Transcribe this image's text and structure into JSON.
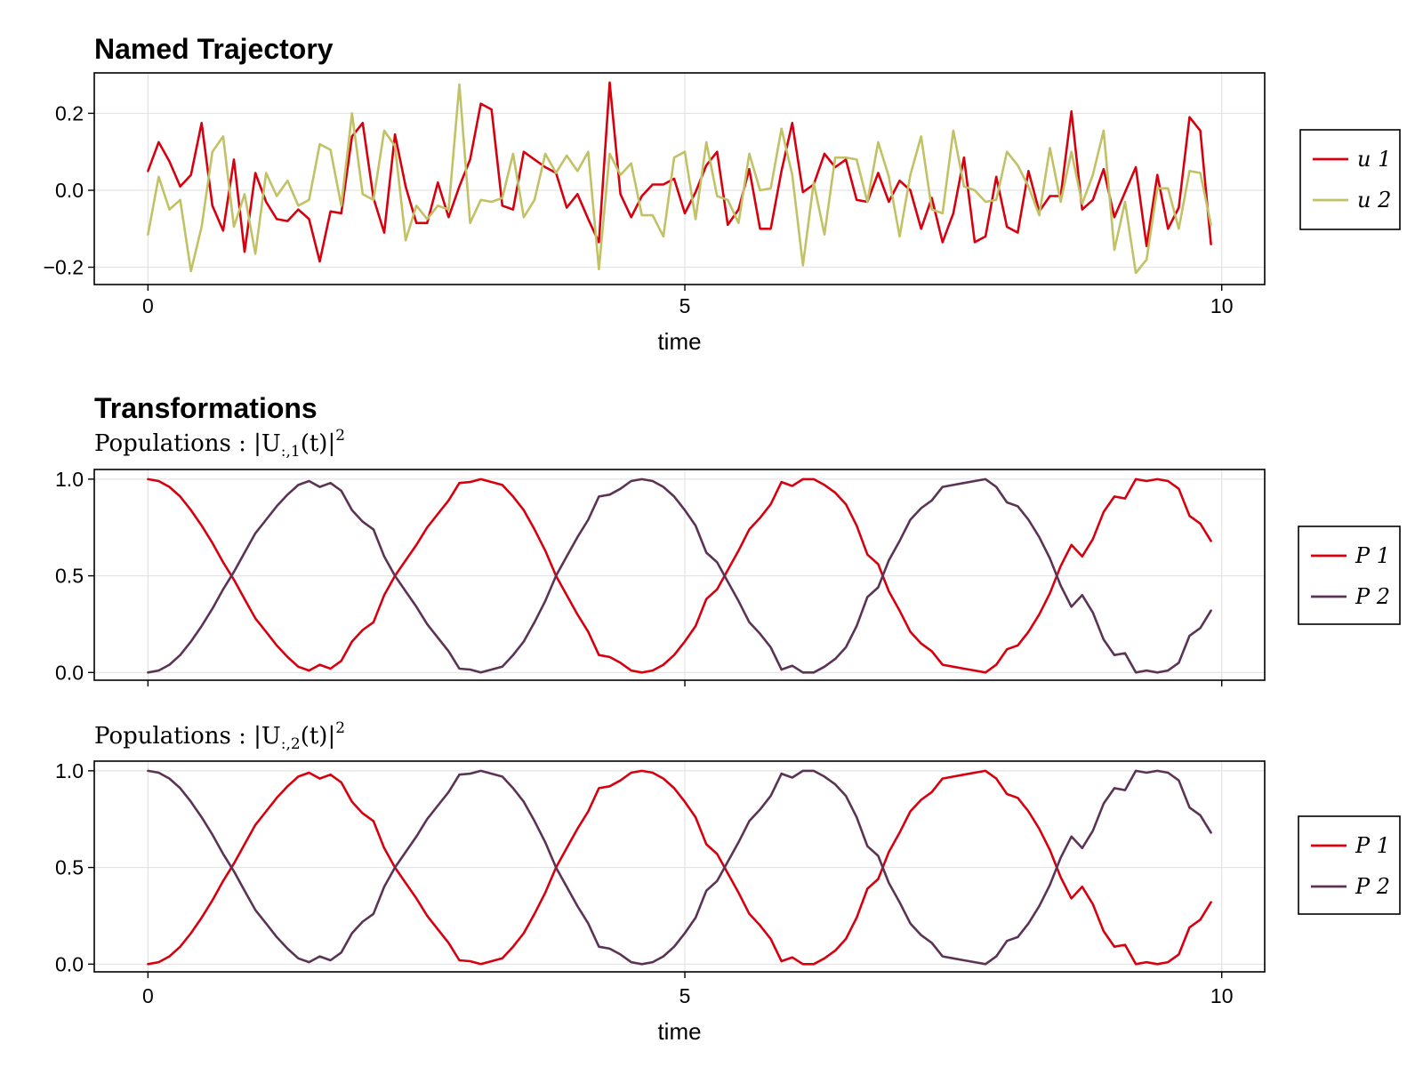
{
  "chart_data": [
    {
      "type": "line",
      "title": "Named Trajectory",
      "subtitle": "",
      "xlabel": "time",
      "ylabel": "",
      "xlim": [
        -0.5,
        10.4
      ],
      "ylim": [
        -0.245,
        0.305
      ],
      "xticks": [
        0,
        5,
        10
      ],
      "yticks": [
        -0.2,
        0.0,
        0.2
      ],
      "xtick_labels": [
        "0",
        "5",
        "10"
      ],
      "ytick_labels": [
        "−0.2",
        "0.0",
        "0.2"
      ],
      "grid": true,
      "legend_position": "right",
      "x": [
        0.0,
        0.1,
        0.2,
        0.3,
        0.4,
        0.5,
        0.6,
        0.7,
        0.8,
        0.9,
        1.0,
        1.1,
        1.2,
        1.3,
        1.4,
        1.5,
        1.6,
        1.7,
        1.8,
        1.9,
        2.0,
        2.1,
        2.2,
        2.3,
        2.4,
        2.5,
        2.6,
        2.7,
        2.8,
        2.9,
        3.0,
        3.1,
        3.2,
        3.3,
        3.4,
        3.5,
        3.6,
        3.7,
        3.8,
        3.9,
        4.0,
        4.1,
        4.2,
        4.3,
        4.4,
        4.5,
        4.6,
        4.7,
        4.8,
        4.9,
        5.0,
        5.1,
        5.2,
        5.3,
        5.4,
        5.5,
        5.6,
        5.7,
        5.8,
        5.9,
        6.0,
        6.1,
        6.2,
        6.3,
        6.4,
        6.5,
        6.6,
        6.7,
        6.8,
        6.9,
        7.0,
        7.1,
        7.2,
        7.3,
        7.4,
        7.5,
        7.6,
        7.7,
        7.8,
        7.9,
        8.0,
        8.1,
        8.2,
        8.3,
        8.4,
        8.5,
        8.6,
        8.7,
        8.8,
        8.9,
        9.0,
        9.1,
        9.2,
        9.3,
        9.4,
        9.5,
        9.6,
        9.7,
        9.8,
        9.9
      ],
      "series": [
        {
          "name": "u 1",
          "color": "#d7000f",
          "values": [
            0.05,
            0.125,
            0.075,
            0.01,
            0.04,
            0.175,
            -0.04,
            -0.105,
            0.08,
            -0.16,
            0.045,
            -0.03,
            -0.075,
            -0.08,
            -0.05,
            -0.075,
            -0.185,
            -0.055,
            -0.06,
            0.14,
            0.175,
            -0.02,
            -0.11,
            0.145,
            0.01,
            -0.085,
            -0.085,
            0.02,
            -0.07,
            0.01,
            0.08,
            0.225,
            0.21,
            -0.04,
            -0.05,
            0.1,
            0.08,
            0.06,
            0.045,
            -0.045,
            -0.01,
            -0.075,
            -0.135,
            0.28,
            -0.01,
            -0.07,
            -0.015,
            0.015,
            0.015,
            0.03,
            -0.06,
            -0.005,
            0.065,
            0.1,
            -0.09,
            -0.05,
            0.055,
            -0.1,
            -0.1,
            0.05,
            0.175,
            -0.005,
            0.015,
            0.095,
            0.06,
            0.08,
            -0.025,
            -0.03,
            0.045,
            -0.03,
            0.025,
            0.0,
            -0.1,
            -0.02,
            -0.135,
            -0.06,
            0.085,
            -0.135,
            -0.12,
            0.035,
            -0.095,
            -0.11,
            0.05,
            -0.055,
            -0.015,
            -0.015,
            0.205,
            -0.05,
            -0.025,
            0.055,
            -0.07,
            -0.005,
            0.06,
            -0.145,
            0.04,
            -0.1,
            -0.045,
            0.19,
            0.155,
            -0.14
          ]
        },
        {
          "name": "u 2",
          "color": "#c1c165",
          "values": [
            -0.115,
            0.035,
            -0.05,
            -0.025,
            -0.21,
            -0.095,
            0.1,
            0.14,
            -0.095,
            -0.01,
            -0.165,
            0.045,
            -0.015,
            0.025,
            -0.04,
            -0.025,
            0.12,
            0.105,
            -0.04,
            0.2,
            -0.01,
            -0.025,
            0.155,
            0.115,
            -0.13,
            -0.04,
            -0.075,
            -0.04,
            -0.05,
            0.275,
            -0.085,
            -0.025,
            -0.03,
            -0.02,
            0.095,
            -0.07,
            -0.025,
            0.095,
            0.045,
            0.09,
            0.05,
            0.1,
            -0.205,
            0.095,
            0.04,
            0.07,
            -0.065,
            -0.065,
            -0.12,
            0.085,
            0.1,
            -0.075,
            0.125,
            -0.015,
            -0.025,
            -0.085,
            0.095,
            0.0,
            0.005,
            0.16,
            0.04,
            -0.195,
            0.02,
            -0.115,
            0.085,
            0.085,
            0.08,
            -0.03,
            0.125,
            0.035,
            -0.12,
            0.04,
            0.14,
            -0.05,
            -0.06,
            0.155,
            0.01,
            0.0,
            -0.03,
            -0.025,
            0.1,
            0.065,
            0.01,
            -0.065,
            0.11,
            -0.03,
            0.1,
            -0.035,
            0.04,
            0.155,
            -0.155,
            -0.03,
            -0.215,
            -0.18,
            0.005,
            0.005,
            -0.1,
            0.05,
            0.045,
            -0.09
          ]
        }
      ]
    },
    {
      "type": "line",
      "title": "Transformations",
      "subtitle": {
        "prefix": "Populations : |U",
        "sub": ":,1",
        "mid": "(t)|",
        "sup": "2"
      },
      "xlabel": "",
      "ylabel": "",
      "xlim": [
        -0.5,
        10.4
      ],
      "ylim": [
        -0.04,
        1.05
      ],
      "xticks": [
        0,
        5,
        10
      ],
      "yticks": [
        0.0,
        0.5,
        1.0
      ],
      "xtick_labels": [],
      "ytick_labels": [
        "0.0",
        "0.5",
        "1.0"
      ],
      "grid": true,
      "legend_position": "right",
      "x": [
        0.0,
        0.1,
        0.2,
        0.3,
        0.4,
        0.5,
        0.6,
        0.7,
        0.8,
        0.9,
        1.0,
        1.1,
        1.2,
        1.3,
        1.4,
        1.5,
        1.6,
        1.7,
        1.8,
        1.9,
        2.0,
        2.1,
        2.2,
        2.3,
        2.4,
        2.5,
        2.6,
        2.7,
        2.8,
        2.9,
        3.0,
        3.1,
        3.2,
        3.3,
        3.4,
        3.5,
        3.6,
        3.7,
        3.8,
        3.9,
        4.0,
        4.1,
        4.2,
        4.3,
        4.4,
        4.5,
        4.6,
        4.7,
        4.8,
        4.9,
        5.0,
        5.1,
        5.2,
        5.3,
        5.4,
        5.5,
        5.6,
        5.7,
        5.8,
        5.9,
        6.0,
        6.1,
        6.2,
        6.3,
        6.4,
        6.5,
        6.6,
        6.7,
        6.8,
        6.9,
        7.0,
        7.1,
        7.2,
        7.3,
        7.4,
        7.5,
        7.6,
        7.7,
        7.8,
        7.9,
        8.0,
        8.1,
        8.2,
        8.3,
        8.4,
        8.5,
        8.6,
        8.7,
        8.8,
        8.9,
        9.0,
        9.1,
        9.2,
        9.3,
        9.4,
        9.5,
        9.6,
        9.7,
        9.8,
        9.9
      ],
      "series": [
        {
          "name": "P 1",
          "color": "#d7000f",
          "values": [
            1.0,
            0.99,
            0.96,
            0.91,
            0.84,
            0.76,
            0.67,
            0.57,
            0.48,
            0.38,
            0.28,
            0.21,
            0.14,
            0.08,
            0.03,
            0.01,
            0.04,
            0.02,
            0.06,
            0.16,
            0.22,
            0.26,
            0.4,
            0.5,
            0.58,
            0.66,
            0.75,
            0.82,
            0.89,
            0.98,
            0.985,
            1.0,
            0.985,
            0.97,
            0.91,
            0.84,
            0.74,
            0.63,
            0.5,
            0.4,
            0.3,
            0.21,
            0.09,
            0.08,
            0.05,
            0.01,
            0.0,
            0.01,
            0.04,
            0.09,
            0.16,
            0.24,
            0.38,
            0.43,
            0.53,
            0.63,
            0.74,
            0.8,
            0.87,
            0.985,
            0.965,
            1.0,
            1.0,
            0.97,
            0.93,
            0.87,
            0.76,
            0.61,
            0.56,
            0.42,
            0.32,
            0.21,
            0.15,
            0.11,
            0.04,
            0.03,
            0.02,
            0.01,
            0.0,
            0.04,
            0.12,
            0.14,
            0.21,
            0.3,
            0.41,
            0.55,
            0.66,
            0.6,
            0.69,
            0.83,
            0.91,
            0.9,
            1.0,
            0.99,
            1.0,
            0.99,
            0.95,
            0.81,
            0.77,
            0.68
          ]
        },
        {
          "name": "P 2",
          "color": "#5b3455",
          "values": [
            0.0,
            0.01,
            0.04,
            0.09,
            0.16,
            0.24,
            0.33,
            0.43,
            0.52,
            0.62,
            0.72,
            0.79,
            0.86,
            0.92,
            0.97,
            0.99,
            0.96,
            0.98,
            0.94,
            0.84,
            0.78,
            0.74,
            0.6,
            0.5,
            0.42,
            0.34,
            0.25,
            0.18,
            0.11,
            0.02,
            0.015,
            0.0,
            0.015,
            0.03,
            0.09,
            0.16,
            0.26,
            0.37,
            0.5,
            0.6,
            0.7,
            0.79,
            0.91,
            0.92,
            0.95,
            0.99,
            1.0,
            0.99,
            0.96,
            0.91,
            0.84,
            0.76,
            0.62,
            0.57,
            0.47,
            0.37,
            0.26,
            0.2,
            0.13,
            0.015,
            0.035,
            0.0,
            0.0,
            0.03,
            0.07,
            0.13,
            0.24,
            0.39,
            0.44,
            0.58,
            0.68,
            0.79,
            0.85,
            0.89,
            0.96,
            0.97,
            0.98,
            0.99,
            1.0,
            0.96,
            0.88,
            0.86,
            0.79,
            0.7,
            0.59,
            0.45,
            0.34,
            0.4,
            0.31,
            0.17,
            0.09,
            0.1,
            0.0,
            0.01,
            0.0,
            0.01,
            0.05,
            0.19,
            0.23,
            0.32
          ]
        }
      ]
    },
    {
      "type": "line",
      "title": "",
      "subtitle": {
        "prefix": "Populations : |U",
        "sub": ":,2",
        "mid": "(t)|",
        "sup": "2"
      },
      "xlabel": "time",
      "ylabel": "",
      "xlim": [
        -0.5,
        10.4
      ],
      "ylim": [
        -0.04,
        1.05
      ],
      "xticks": [
        0,
        5,
        10
      ],
      "yticks": [
        0.0,
        0.5,
        1.0
      ],
      "xtick_labels": [
        "0",
        "5",
        "10"
      ],
      "ytick_labels": [
        "0.0",
        "0.5",
        "1.0"
      ],
      "grid": true,
      "legend_position": "right",
      "x": [
        0.0,
        0.1,
        0.2,
        0.3,
        0.4,
        0.5,
        0.6,
        0.7,
        0.8,
        0.9,
        1.0,
        1.1,
        1.2,
        1.3,
        1.4,
        1.5,
        1.6,
        1.7,
        1.8,
        1.9,
        2.0,
        2.1,
        2.2,
        2.3,
        2.4,
        2.5,
        2.6,
        2.7,
        2.8,
        2.9,
        3.0,
        3.1,
        3.2,
        3.3,
        3.4,
        3.5,
        3.6,
        3.7,
        3.8,
        3.9,
        4.0,
        4.1,
        4.2,
        4.3,
        4.4,
        4.5,
        4.6,
        4.7,
        4.8,
        4.9,
        5.0,
        5.1,
        5.2,
        5.3,
        5.4,
        5.5,
        5.6,
        5.7,
        5.8,
        5.9,
        6.0,
        6.1,
        6.2,
        6.3,
        6.4,
        6.5,
        6.6,
        6.7,
        6.8,
        6.9,
        7.0,
        7.1,
        7.2,
        7.3,
        7.4,
        7.5,
        7.6,
        7.7,
        7.8,
        7.9,
        8.0,
        8.1,
        8.2,
        8.3,
        8.4,
        8.5,
        8.6,
        8.7,
        8.8,
        8.9,
        9.0,
        9.1,
        9.2,
        9.3,
        9.4,
        9.5,
        9.6,
        9.7,
        9.8,
        9.9
      ],
      "series": [
        {
          "name": "P 1",
          "color": "#d7000f",
          "values": [
            0.0,
            0.01,
            0.04,
            0.09,
            0.16,
            0.24,
            0.33,
            0.43,
            0.52,
            0.62,
            0.72,
            0.79,
            0.86,
            0.92,
            0.97,
            0.99,
            0.96,
            0.98,
            0.94,
            0.84,
            0.78,
            0.74,
            0.6,
            0.5,
            0.42,
            0.34,
            0.25,
            0.18,
            0.11,
            0.02,
            0.015,
            0.0,
            0.015,
            0.03,
            0.09,
            0.16,
            0.26,
            0.37,
            0.5,
            0.6,
            0.7,
            0.79,
            0.91,
            0.92,
            0.95,
            0.99,
            1.0,
            0.99,
            0.96,
            0.91,
            0.84,
            0.76,
            0.62,
            0.57,
            0.47,
            0.37,
            0.26,
            0.2,
            0.13,
            0.015,
            0.035,
            0.0,
            0.0,
            0.03,
            0.07,
            0.13,
            0.24,
            0.39,
            0.44,
            0.58,
            0.68,
            0.79,
            0.85,
            0.89,
            0.96,
            0.97,
            0.98,
            0.99,
            1.0,
            0.96,
            0.88,
            0.86,
            0.79,
            0.7,
            0.59,
            0.45,
            0.34,
            0.4,
            0.31,
            0.17,
            0.09,
            0.1,
            0.0,
            0.01,
            0.0,
            0.01,
            0.05,
            0.19,
            0.23,
            0.32
          ]
        },
        {
          "name": "P 2",
          "color": "#5b3455",
          "values": [
            1.0,
            0.99,
            0.96,
            0.91,
            0.84,
            0.76,
            0.67,
            0.57,
            0.48,
            0.38,
            0.28,
            0.21,
            0.14,
            0.08,
            0.03,
            0.01,
            0.04,
            0.02,
            0.06,
            0.16,
            0.22,
            0.26,
            0.4,
            0.5,
            0.58,
            0.66,
            0.75,
            0.82,
            0.89,
            0.98,
            0.985,
            1.0,
            0.985,
            0.97,
            0.91,
            0.84,
            0.74,
            0.63,
            0.5,
            0.4,
            0.3,
            0.21,
            0.09,
            0.08,
            0.05,
            0.01,
            0.0,
            0.01,
            0.04,
            0.09,
            0.16,
            0.24,
            0.38,
            0.43,
            0.53,
            0.63,
            0.74,
            0.8,
            0.87,
            0.985,
            0.965,
            1.0,
            1.0,
            0.97,
            0.93,
            0.87,
            0.76,
            0.61,
            0.56,
            0.42,
            0.32,
            0.21,
            0.15,
            0.11,
            0.04,
            0.03,
            0.02,
            0.01,
            0.0,
            0.04,
            0.12,
            0.14,
            0.21,
            0.3,
            0.41,
            0.55,
            0.66,
            0.6,
            0.69,
            0.83,
            0.91,
            0.9,
            1.0,
            0.99,
            1.0,
            0.99,
            0.95,
            0.81,
            0.77,
            0.68
          ]
        }
      ]
    }
  ]
}
